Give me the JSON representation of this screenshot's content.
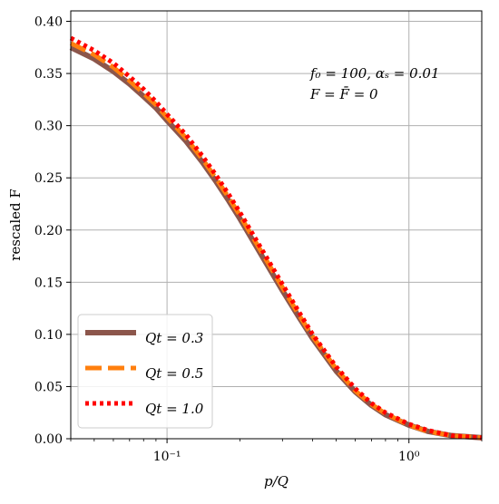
{
  "chart_data": {
    "type": "line",
    "xscale": "log",
    "xlim": [
      0.04,
      2.0
    ],
    "ylim": [
      0.0,
      0.41
    ],
    "xlabel": "p/Q",
    "ylabel": "rescaled F",
    "grid": true,
    "legend_position": "lower-left",
    "annotations": [
      "f₀ = 100, αₛ = 0.01",
      "F = F̄ = 0"
    ],
    "x_ticks": [
      {
        "value": 0.1,
        "label": "10⁻¹"
      },
      {
        "value": 1.0,
        "label": "10⁰"
      }
    ],
    "y_ticks": [
      {
        "value": 0.0,
        "label": "0.00"
      },
      {
        "value": 0.05,
        "label": "0.05"
      },
      {
        "value": 0.1,
        "label": "0.10"
      },
      {
        "value": 0.15,
        "label": "0.15"
      },
      {
        "value": 0.2,
        "label": "0.20"
      },
      {
        "value": 0.25,
        "label": "0.25"
      },
      {
        "value": 0.3,
        "label": "0.30"
      },
      {
        "value": 0.35,
        "label": "0.35"
      },
      {
        "value": 0.4,
        "label": "0.40"
      }
    ],
    "series": [
      {
        "name": "Qt = 0.3",
        "color": "#8c564b",
        "style": "solid",
        "points": [
          [
            0.04,
            0.375
          ],
          [
            0.05,
            0.364
          ],
          [
            0.06,
            0.352
          ],
          [
            0.07,
            0.34
          ],
          [
            0.08,
            0.328
          ],
          [
            0.09,
            0.317
          ],
          [
            0.1,
            0.305
          ],
          [
            0.12,
            0.285
          ],
          [
            0.14,
            0.265
          ],
          [
            0.16,
            0.246
          ],
          [
            0.18,
            0.228
          ],
          [
            0.2,
            0.211
          ],
          [
            0.25,
            0.173
          ],
          [
            0.3,
            0.142
          ],
          [
            0.35,
            0.117
          ],
          [
            0.4,
            0.096
          ],
          [
            0.5,
            0.065
          ],
          [
            0.6,
            0.045
          ],
          [
            0.7,
            0.032
          ],
          [
            0.8,
            0.023
          ],
          [
            1.0,
            0.013
          ],
          [
            1.2,
            0.007
          ],
          [
            1.5,
            0.003
          ],
          [
            2.0,
            0.001
          ]
        ]
      },
      {
        "name": "Qt = 0.5",
        "color": "#ff7f0e",
        "style": "dashed",
        "points": [
          [
            0.04,
            0.379
          ],
          [
            0.05,
            0.368
          ],
          [
            0.06,
            0.356
          ],
          [
            0.07,
            0.343
          ],
          [
            0.08,
            0.331
          ],
          [
            0.09,
            0.32
          ],
          [
            0.1,
            0.308
          ],
          [
            0.12,
            0.288
          ],
          [
            0.14,
            0.268
          ],
          [
            0.16,
            0.249
          ],
          [
            0.18,
            0.231
          ],
          [
            0.2,
            0.214
          ],
          [
            0.25,
            0.176
          ],
          [
            0.3,
            0.145
          ],
          [
            0.35,
            0.119
          ],
          [
            0.4,
            0.098
          ],
          [
            0.5,
            0.067
          ],
          [
            0.6,
            0.046
          ],
          [
            0.7,
            0.033
          ],
          [
            0.8,
            0.024
          ],
          [
            1.0,
            0.013
          ],
          [
            1.2,
            0.007
          ],
          [
            1.5,
            0.003
          ],
          [
            2.0,
            0.001
          ]
        ]
      },
      {
        "name": "Qt = 1.0",
        "color": "#ff0000",
        "style": "dotted",
        "points": [
          [
            0.04,
            0.384
          ],
          [
            0.05,
            0.372
          ],
          [
            0.06,
            0.36
          ],
          [
            0.07,
            0.347
          ],
          [
            0.08,
            0.335
          ],
          [
            0.09,
            0.323
          ],
          [
            0.1,
            0.311
          ],
          [
            0.12,
            0.291
          ],
          [
            0.14,
            0.271
          ],
          [
            0.16,
            0.252
          ],
          [
            0.18,
            0.234
          ],
          [
            0.2,
            0.217
          ],
          [
            0.25,
            0.179
          ],
          [
            0.3,
            0.148
          ],
          [
            0.35,
            0.122
          ],
          [
            0.4,
            0.1
          ],
          [
            0.5,
            0.069
          ],
          [
            0.6,
            0.048
          ],
          [
            0.7,
            0.034
          ],
          [
            0.8,
            0.025
          ],
          [
            1.0,
            0.014
          ],
          [
            1.2,
            0.008
          ],
          [
            1.5,
            0.003
          ],
          [
            2.0,
            0.001
          ]
        ]
      }
    ]
  }
}
